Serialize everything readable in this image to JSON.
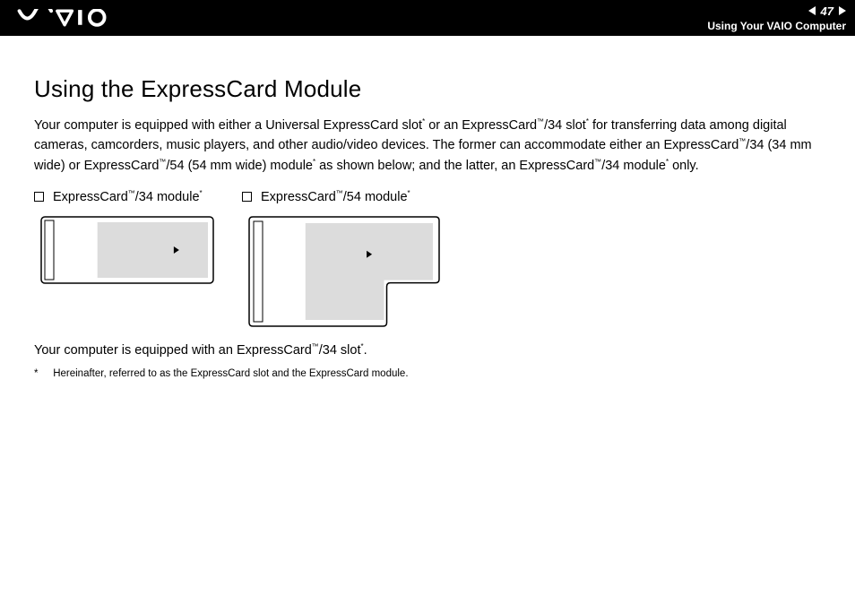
{
  "header": {
    "page_number": "47",
    "section": "Using Your VAIO Computer"
  },
  "title": "Using the ExpressCard Module",
  "intro_html": "Your computer is equipped with either a Universal ExpressCard slot<sup>*</sup> or an ExpressCard<sup>™</sup>/34 slot<sup>*</sup> for transferring data among digital cameras, camcorders, music players, and other audio/video devices. The former can accommodate either an ExpressCard<sup>™</sup>/34 (34 mm wide) or ExpressCard<sup>™</sup>/54 (54 mm wide) module<sup>*</sup> as shown below; and the latter, an ExpressCard<sup>™</sup>/34 module<sup>*</sup> only.",
  "modules": {
    "left": {
      "label_html": "ExpressCard<sup>™</sup>/34 module<sup>*</sup>",
      "figure": {
        "type": "card34",
        "outer_w": 196,
        "outer_h": 78,
        "stroke": "#000000",
        "fill_light": "#ffffff",
        "fill_grey": "#dcdcdc",
        "stroke_w": 1.5
      }
    },
    "right": {
      "label_html": "ExpressCard<sup>™</sup>/54 module<sup>*</sup>",
      "figure": {
        "type": "card54",
        "outer_w": 216,
        "outer_h": 126,
        "stroke": "#000000",
        "fill_light": "#ffffff",
        "fill_grey": "#dcdcdc",
        "stroke_w": 1.5
      }
    }
  },
  "closing_html": "Your computer is equipped with an ExpressCard<sup>™</sup>/34 slot<sup>*</sup>.",
  "footnote": {
    "marker": "*",
    "text": "Hereinafter, referred to as the ExpressCard slot and the ExpressCard module."
  },
  "colors": {
    "header_bg": "#000000",
    "header_fg": "#ffffff",
    "page_bg": "#ffffff",
    "text": "#000000"
  }
}
